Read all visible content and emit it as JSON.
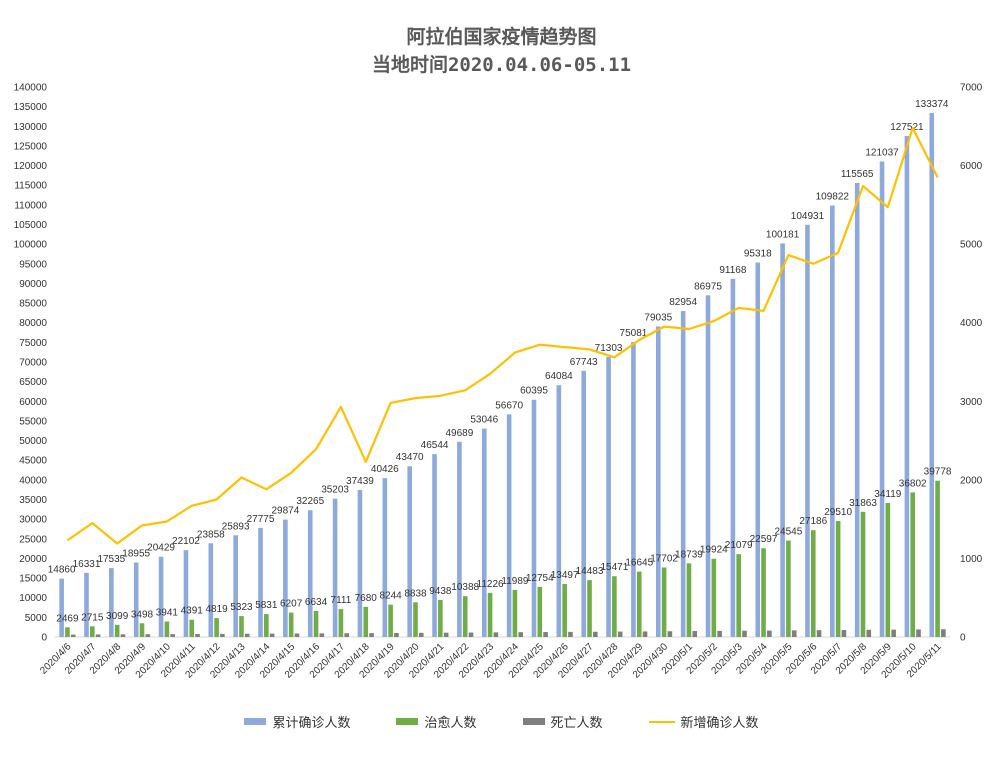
{
  "chart_data": {
    "type": "bar",
    "title": "阿拉伯国家疫情趋势图",
    "subtitle": "当地时间2020.04.06-05.11",
    "categories": [
      "2020/4/6",
      "2020/4/7",
      "2020/4/8",
      "2020/4/9",
      "2020/4/10",
      "2020/4/11",
      "2020/4/12",
      "2020/4/13",
      "2020/4/14",
      "2020/4/15",
      "2020/4/16",
      "2020/4/17",
      "2020/4/18",
      "2020/4/19",
      "2020/4/20",
      "2020/4/21",
      "2020/4/22",
      "2020/4/23",
      "2020/4/24",
      "2020/4/25",
      "2020/4/26",
      "2020/4/27",
      "2020/4/28",
      "2020/4/29",
      "2020/4/30",
      "2020/5/1",
      "2020/5/2",
      "2020/5/3",
      "2020/5/4",
      "2020/5/5",
      "2020/5/6",
      "2020/5/7",
      "2020/5/8",
      "2020/5/9",
      "2020/5/10",
      "2020/5/11"
    ],
    "series": [
      {
        "name": "累计确诊人数",
        "type": "bar",
        "axis": "left",
        "color": "#8EA9DB",
        "values": [
          14860,
          16331,
          17535,
          18955,
          20429,
          22102,
          23858,
          25893,
          27775,
          29874,
          32265,
          35203,
          37439,
          40426,
          43470,
          46544,
          49689,
          53046,
          56670,
          60395,
          64084,
          67743,
          71303,
          75081,
          79035,
          82954,
          86975,
          91168,
          95318,
          100181,
          104931,
          109822,
          115565,
          121037,
          127521,
          133374
        ]
      },
      {
        "name": "治愈人数",
        "type": "bar",
        "axis": "left",
        "color": "#70AD47",
        "values": [
          2469,
          2715,
          3099,
          3498,
          3941,
          4391,
          4819,
          5323,
          5831,
          6207,
          6634,
          7111,
          7680,
          8244,
          8838,
          9438,
          10388,
          11226,
          11989,
          12754,
          13497,
          14483,
          15471,
          16645,
          17702,
          18739,
          19924,
          21079,
          22597,
          24545,
          27186,
          29510,
          31863,
          34119,
          36802,
          39778
        ]
      },
      {
        "name": "死亡人数",
        "type": "bar",
        "axis": "left",
        "color": "#7F7F7F",
        "values": [
          620,
          650,
          680,
          700,
          730,
          760,
          790,
          820,
          860,
          890,
          920,
          960,
          990,
          1020,
          1060,
          1100,
          1140,
          1180,
          1220,
          1260,
          1300,
          1340,
          1380,
          1420,
          1470,
          1520,
          1560,
          1600,
          1640,
          1690,
          1740,
          1790,
          1830,
          1880,
          1930,
          1980
        ]
      },
      {
        "name": "新增确诊人数",
        "type": "line",
        "axis": "right",
        "color": "#FFC000",
        "values": [
          1230,
          1450,
          1190,
          1420,
          1470,
          1670,
          1750,
          2030,
          1880,
          2090,
          2390,
          2930,
          2230,
          2980,
          3040,
          3070,
          3140,
          3350,
          3620,
          3720,
          3690,
          3660,
          3560,
          3780,
          3950,
          3920,
          4020,
          4190,
          4150,
          4860,
          4750,
          4890,
          5740,
          5470,
          6480,
          5850
        ]
      }
    ],
    "y_left": {
      "min": 0,
      "max": 140000,
      "step": 5000
    },
    "y_right": {
      "min": 0,
      "max": 7000,
      "step": 1000
    },
    "grid": false,
    "legend_position": "bottom"
  }
}
